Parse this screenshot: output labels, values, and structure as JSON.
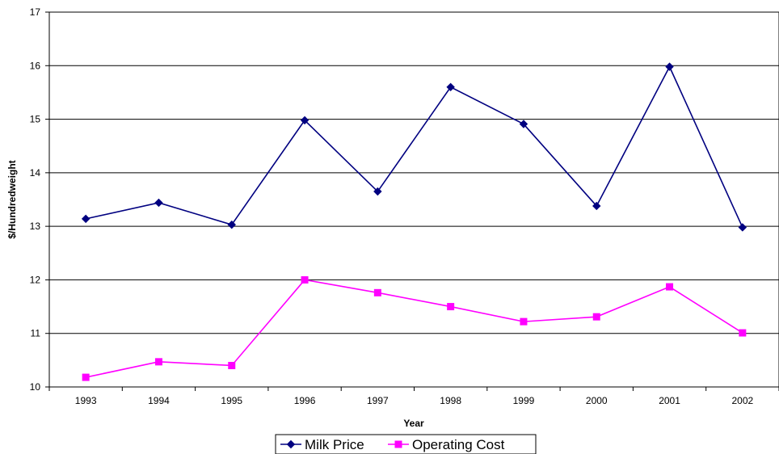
{
  "chart_data": {
    "type": "line",
    "title": "",
    "xlabel": "Year",
    "ylabel": "$/Hundredweight",
    "categories": [
      "1993",
      "1994",
      "1995",
      "1996",
      "1997",
      "1998",
      "1999",
      "2000",
      "2001",
      "2002"
    ],
    "ylim": [
      10,
      17
    ],
    "yticks": [
      10,
      11,
      12,
      13,
      14,
      15,
      16,
      17
    ],
    "grid": "horizontal",
    "legend_position": "bottom",
    "series": [
      {
        "name": "Milk Price",
        "color": "#000080",
        "marker": "diamond",
        "values": [
          13.14,
          13.44,
          13.03,
          14.98,
          13.65,
          15.6,
          14.91,
          13.38,
          15.98,
          12.98
        ]
      },
      {
        "name": "Operating Cost",
        "color": "#ff00ff",
        "marker": "square",
        "values": [
          10.18,
          10.47,
          10.4,
          12.0,
          11.76,
          11.5,
          11.22,
          11.31,
          11.87,
          11.01
        ]
      }
    ]
  }
}
